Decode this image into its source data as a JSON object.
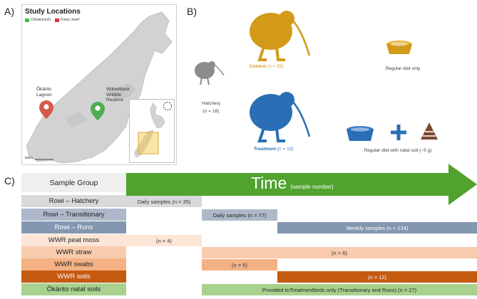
{
  "panelA": {
    "letter": "A)",
    "title": "Study Locations",
    "legend": [
      {
        "label": "Christchurch",
        "color": "#3cc23c"
      },
      {
        "label": "Franz Josef",
        "color": "#d9383a"
      }
    ],
    "locations": [
      {
        "line1": "Ōkārito",
        "line2": "Lagoon",
        "color": "#d65b4a"
      },
      {
        "line1": "Willowbank",
        "line2": "Wildlife",
        "line3": "Reserve",
        "color": "#4fae4f"
      }
    ],
    "scale": "50km"
  },
  "panelB": {
    "letter": "B)",
    "hatchery": {
      "line1": "Hatchery",
      "line2": "(n = 18)"
    },
    "control": {
      "label": "Control",
      "n": "(n = 29)",
      "color": "#d39a1a"
    },
    "treatment": {
      "label": "Treatment",
      "n": "(n = 12)",
      "color": "#2a6fb5"
    },
    "control_diet": "Regular diet only",
    "treatment_diet": "Regular diet with natal soil (~5 g)"
  },
  "panelC": {
    "letter": "C)",
    "header": "Sample Group",
    "time_label": "Time",
    "time_sub": "(sample number)",
    "arrow_color": "#4fa32e",
    "rows": [
      {
        "label": "Rowi – Hatchery",
        "bg": "#d9d9d9",
        "fg": "#222222",
        "segment": {
          "text": "Daily samples (n = 35)",
          "bg": "#d9d9d9",
          "fg": "#333333"
        }
      },
      {
        "label": "Rowi – Transitionary",
        "bg": "#adb9ca",
        "fg": "#222222",
        "segment": {
          "text": "Daily samples (n = 77)",
          "bg": "#adb9ca",
          "fg": "#222222"
        }
      },
      {
        "label": "Rowi – Runs",
        "bg": "#8497b0",
        "fg": "#ffffff",
        "segment": {
          "text": "Weekly samples (n = 134)",
          "bg": "#8497b0",
          "fg": "#ffffff"
        }
      },
      {
        "label": "WWR peat moss",
        "bg": "#fbe5d6",
        "fg": "#222222",
        "segment": {
          "text": "(n = 4)",
          "bg": "#fbe5d6",
          "fg": "#333333"
        }
      },
      {
        "label": "WWR straw",
        "bg": "#f8cbad",
        "fg": "#222222",
        "segment": {
          "text": "(n = 6)",
          "bg": "#f8cbad",
          "fg": "#333333"
        }
      },
      {
        "label": "WWR swabs",
        "bg": "#f4b183",
        "fg": "#222222",
        "segment": {
          "text": "(n = 5)",
          "bg": "#f4b183",
          "fg": "#333333"
        }
      },
      {
        "label": "WWR soils",
        "bg": "#c55a11",
        "fg": "#ffffff",
        "segment": {
          "text": "(n = 12)",
          "bg": "#c55a11",
          "fg": "#ffffff"
        }
      },
      {
        "label": "Ōkārito natal soils",
        "bg": "#a9d18e",
        "fg": "#222222",
        "segment": {
          "pre": "Provided to ",
          "em": "Treatment",
          "post": " birds only (Transitionary and Runs) (n = 27)",
          "bg": "#a9d18e",
          "fg": "#222222"
        }
      }
    ]
  }
}
